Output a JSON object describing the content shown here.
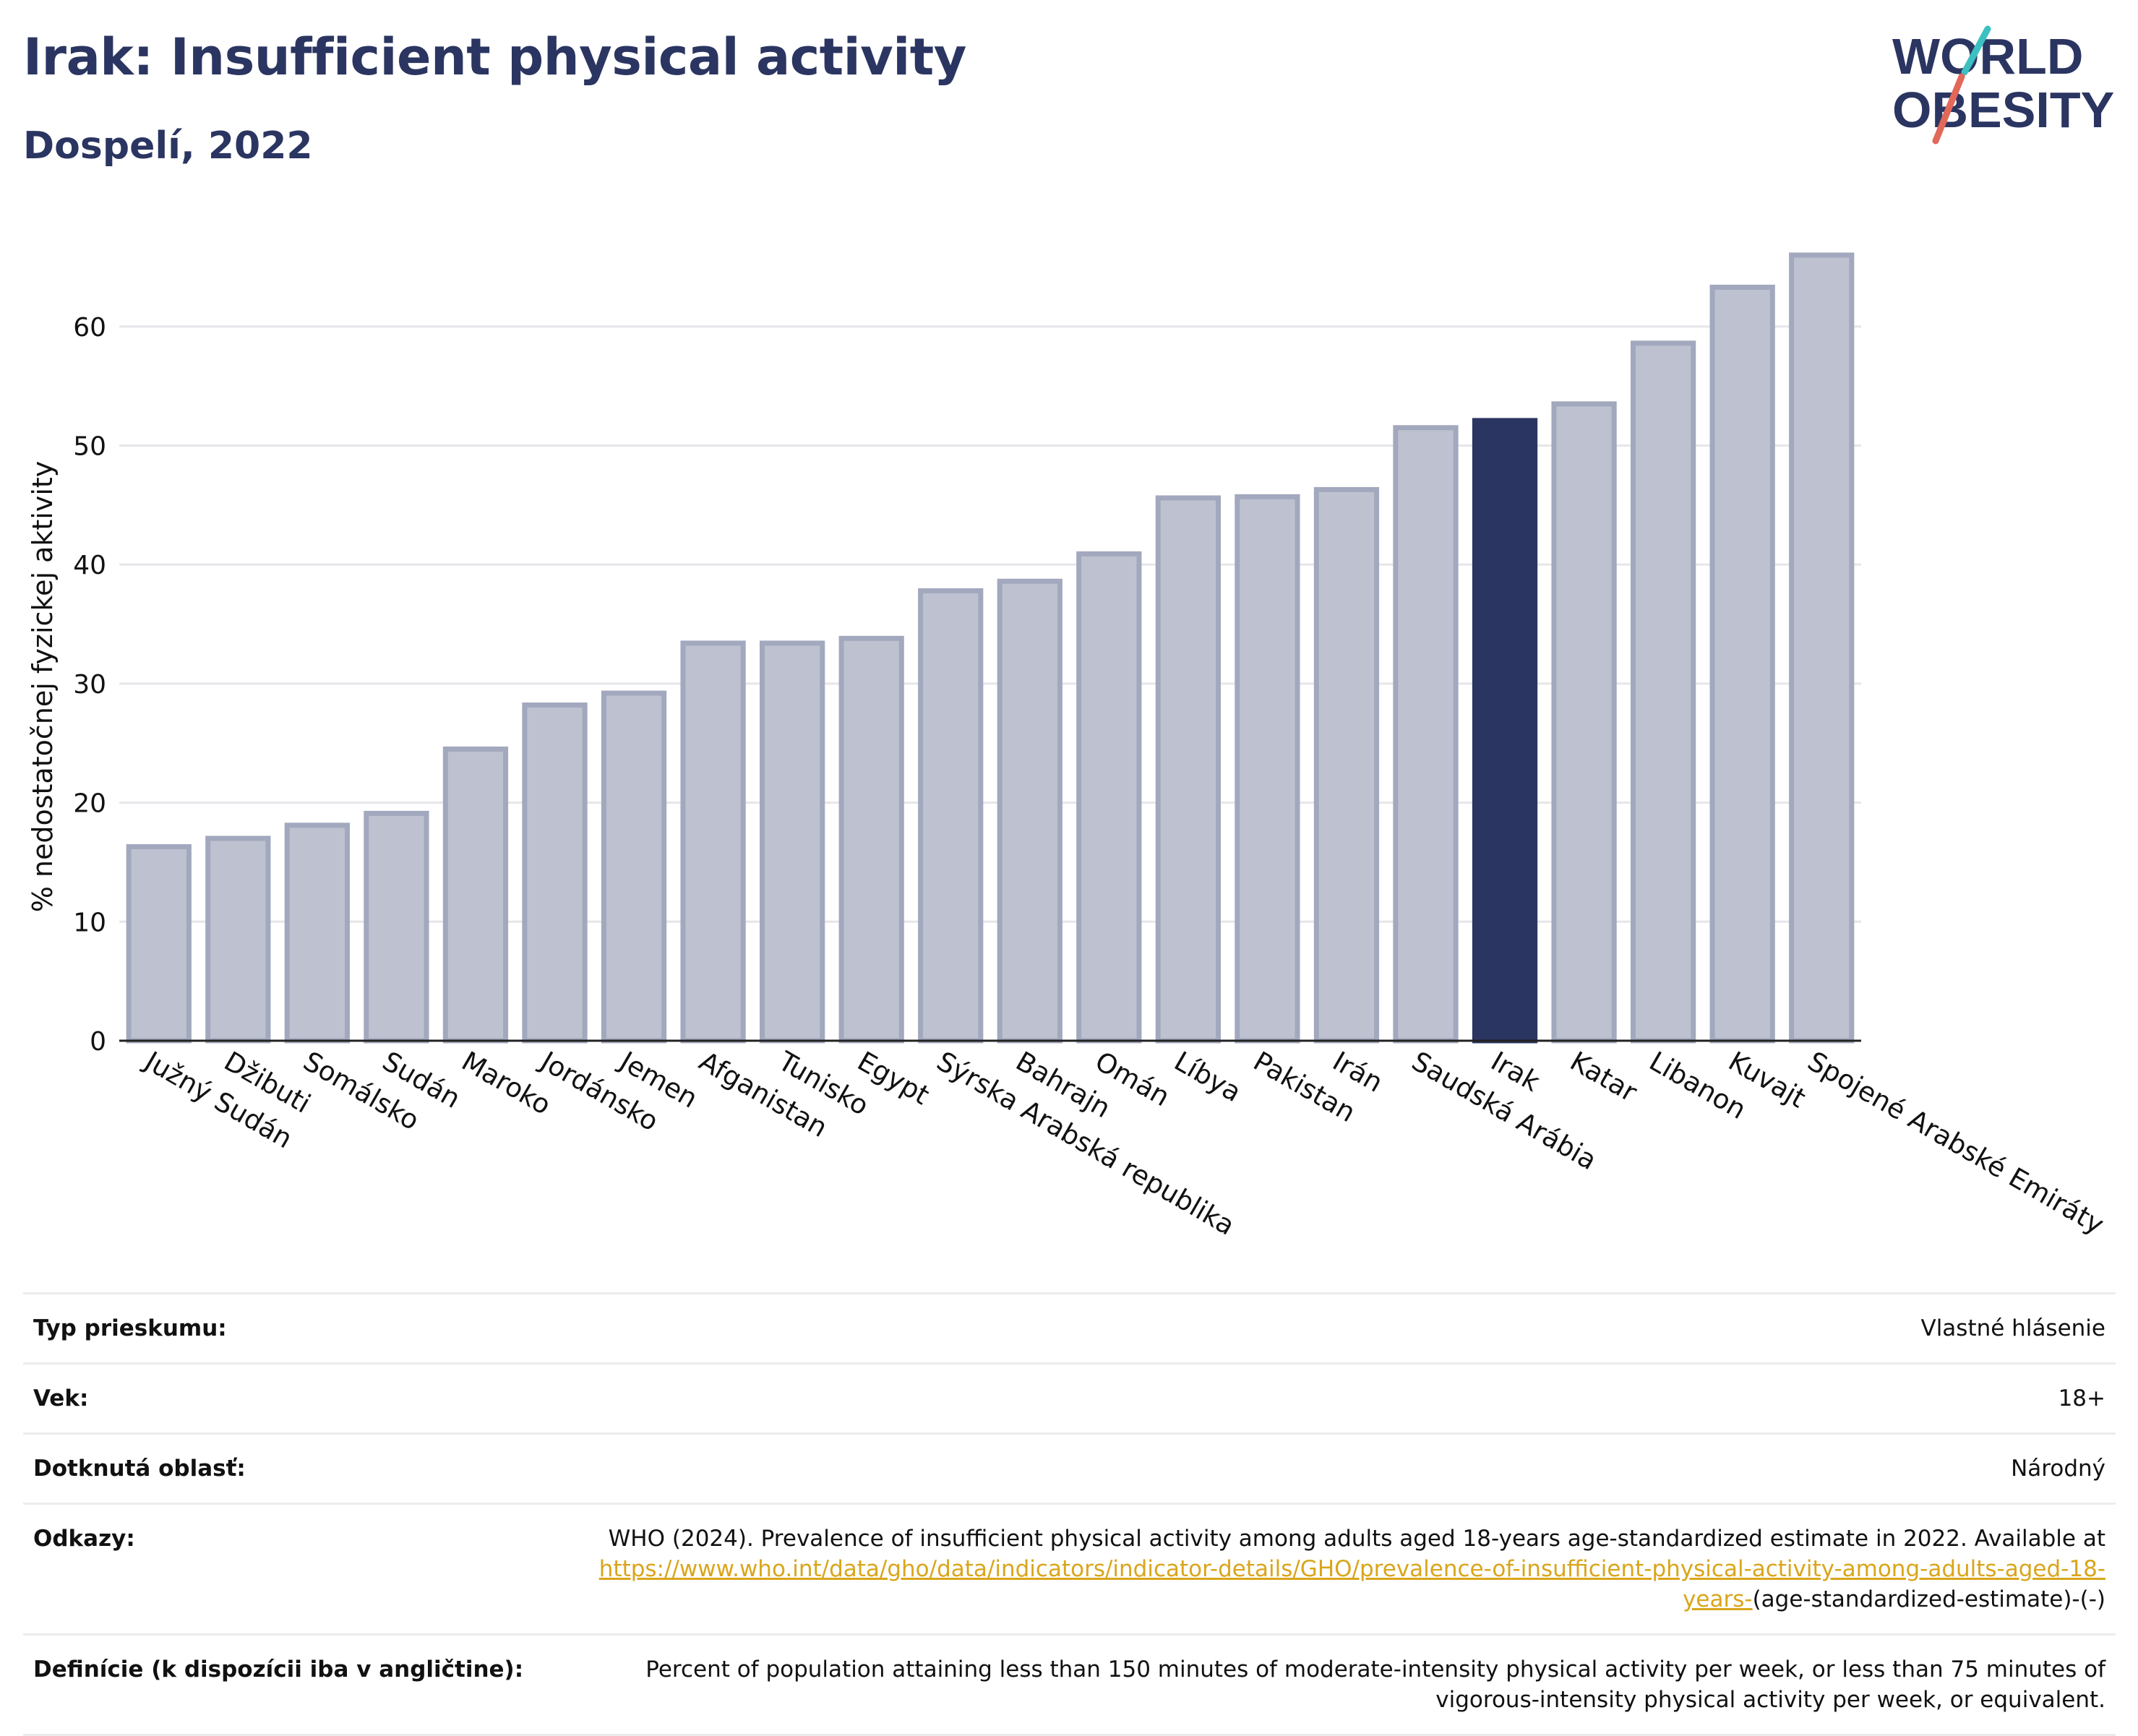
{
  "header": {
    "title": "Irak: Insufficient physical activity",
    "subtitle": "Dospelí, 2022"
  },
  "logo": {
    "line1": "WORLD",
    "line2": "OBESITY",
    "accent_colors": [
      "#3cc0c1",
      "#e2685a"
    ],
    "text_color": "#2b3561"
  },
  "chart_data": {
    "type": "bar",
    "ylabel": "% nedostatočnej fyzickej aktivity",
    "ylim": [
      0,
      68
    ],
    "yticks": [
      0,
      10,
      20,
      30,
      40,
      50,
      60
    ],
    "grid": true,
    "categories": [
      "Južný Sudán",
      "Džibuti",
      "Somálsko",
      "Sudán",
      "Maroko",
      "Jordánsko",
      "Jemen",
      "Afganistan",
      "Tunisko",
      "Egypt",
      "Sýrska Arabská republika",
      "Bahrajn",
      "Omán",
      "Líbya",
      "Pakistan",
      "Irán",
      "Saudská Arábia",
      "Irak",
      "Katar",
      "Libanon",
      "Kuvajt",
      "Spojené Arabské Emiráty"
    ],
    "values": [
      16.3,
      17.0,
      18.1,
      19.1,
      24.5,
      28.2,
      29.2,
      33.4,
      33.4,
      33.8,
      37.8,
      38.6,
      40.9,
      45.6,
      45.7,
      46.3,
      51.5,
      52.1,
      53.5,
      58.6,
      63.3,
      66.0
    ],
    "highlight": "Irak",
    "colors": {
      "bar": "#bec2d0",
      "bar_border": "#a2a8bd",
      "highlight": "#2b3561"
    }
  },
  "info": {
    "rows": [
      {
        "key": "Typ prieskumu:",
        "value": "Vlastné hlásenie"
      },
      {
        "key": "Vek:",
        "value": "18+"
      },
      {
        "key": "Dotknutá oblasť:",
        "value": "Národný"
      }
    ],
    "references": {
      "key": "Odkazy:",
      "text": "WHO (2024). Prevalence of insufficient physical activity among adults aged 18-years age-standardized estimate in 2022. Available at",
      "link": "https://www.who.int/data/gho/data/indicators/indicator-details/GHO/prevalence-of-insufficient-physical-activity-among-adults-aged-18-years-",
      "suffix": "(age-standardized-estimate)-(-)",
      "link_color": "#d9a51b"
    },
    "definitions": {
      "key": "Definície (k dispozícii iba v angličtine):",
      "value": "Percent of population attaining less than 150 minutes of moderate-intensity physical activity per week, or less than 75 minutes of vigorous-intensity physical activity per week, or equivalent."
    }
  }
}
